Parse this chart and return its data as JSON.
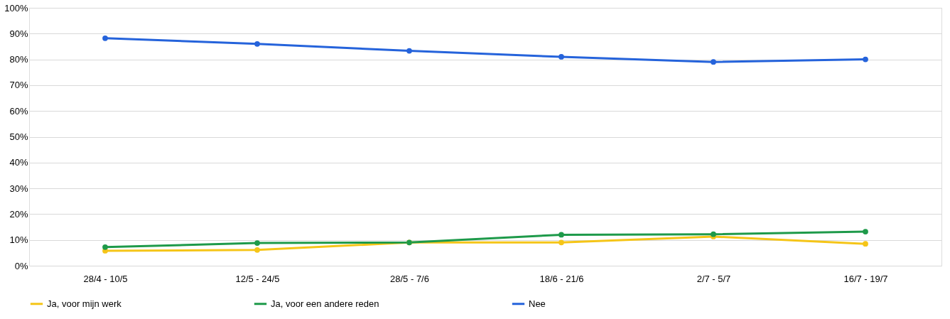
{
  "chart_data": {
    "type": "line",
    "categories": [
      "28/4 - 10/5",
      "12/5 - 24/5",
      "28/5 - 7/6",
      "18/6 - 21/6",
      "2/7 - 5/7",
      "16/7 - 19/7"
    ],
    "series": [
      {
        "name": "Ja, voor mijn werk",
        "color": "#f5c518",
        "values": [
          5.8,
          6.1,
          9,
          9,
          11.3,
          8.5
        ]
      },
      {
        "name": "Ja, voor een andere reden",
        "color": "#1e9a4a",
        "values": [
          7.2,
          8.8,
          9,
          12,
          12.2,
          13.2
        ]
      },
      {
        "name": "Nee",
        "color": "#2563db",
        "values": [
          88.2,
          86,
          83.3,
          81,
          79,
          80
        ]
      }
    ],
    "ylim": [
      0,
      100
    ],
    "yticks": [
      {
        "value": 0,
        "label": "0%"
      },
      {
        "value": 10,
        "label": "10%"
      },
      {
        "value": 20,
        "label": "20%"
      },
      {
        "value": 30,
        "label": "30%"
      },
      {
        "value": 40,
        "label": "40%"
      },
      {
        "value": 50,
        "label": "50%"
      },
      {
        "value": 60,
        "label": "60%"
      },
      {
        "value": 70,
        "label": "70%"
      },
      {
        "value": 80,
        "label": "80%"
      },
      {
        "value": 90,
        "label": "90%"
      },
      {
        "value": 100,
        "label": "100%"
      }
    ],
    "grid": "y",
    "legend": "bottom",
    "marker": "circle",
    "line_style": "solid"
  }
}
